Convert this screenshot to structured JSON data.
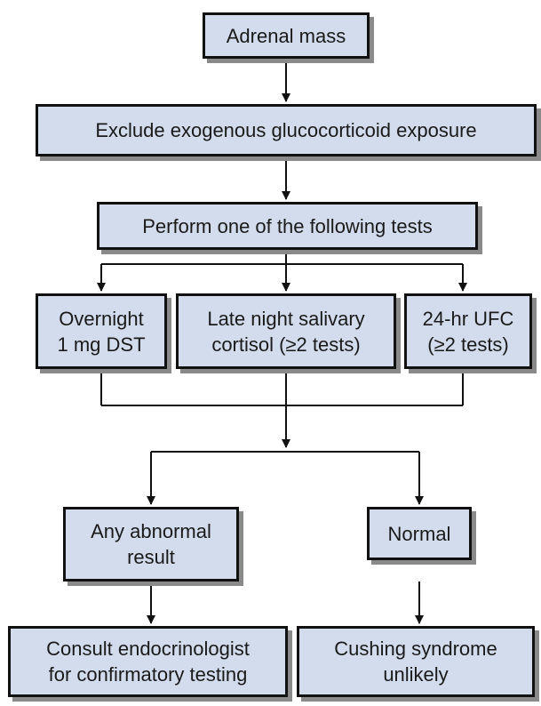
{
  "nodes": {
    "adrenal_mass": "Adrenal mass",
    "exclude": "Exclude exogenous glucocorticoid exposure",
    "perform": "Perform one of the following tests",
    "dst": [
      "Overnight",
      "1 mg DST"
    ],
    "salivary": [
      "Late night salivary",
      "cortisol (≥2 tests)"
    ],
    "ufc": [
      "24-hr UFC",
      "(≥2 tests)"
    ],
    "abnormal": [
      "Any abnormal",
      "result"
    ],
    "normal": "Normal",
    "consult": [
      "Consult endocrinologist",
      "for confirmatory testing"
    ],
    "cushing": [
      "Cushing syndrome",
      "unlikely"
    ]
  },
  "colors": {
    "box_fill": "#d3dcec",
    "box_border": "#111111",
    "box_shadow": "#8a8a8a",
    "line": "#111111"
  }
}
